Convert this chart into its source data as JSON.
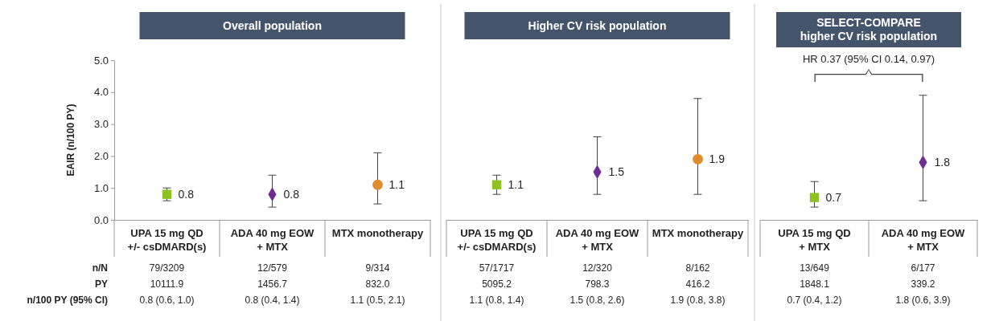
{
  "chart_data": [
    {
      "type": "scatter",
      "title": "Overall population",
      "ylabel": "EAIR (n/100 PY)",
      "categories": [
        "UPA 15 mg QD\n+/- csDMARD(s)",
        "ADA 40 mg EOW\n+ MTX",
        "MTX monotherapy"
      ],
      "ylim": [
        0,
        5
      ],
      "yticks": [
        {
          "value": 0,
          "label": "0.0"
        },
        {
          "value": 1,
          "label": "1.0"
        },
        {
          "value": 2,
          "label": "2.0"
        },
        {
          "value": 3,
          "label": "3.0"
        },
        {
          "value": 4,
          "label": "4.0"
        },
        {
          "value": 5,
          "label": "5.0"
        }
      ],
      "data_labels": true,
      "series": [
        {
          "color": "#8dc21f",
          "marker": "square",
          "values": [
            0.8,
            null,
            null
          ],
          "errors": [
            [
              0.6,
              1.0
            ],
            null,
            null
          ]
        },
        {
          "color": "#6f2c91",
          "marker": "diamond",
          "values": [
            null,
            0.8,
            null
          ],
          "errors": [
            null,
            [
              0.4,
              1.4
            ],
            null
          ]
        },
        {
          "color": "#e08b2c",
          "marker": "circle",
          "values": [
            null,
            null,
            1.1
          ],
          "errors": [
            null,
            null,
            [
              0.5,
              2.1
            ]
          ]
        }
      ],
      "annotations": [
        "n/N",
        "PY",
        "n/100 PY (95% CI)",
        "79/3209",
        "12/579",
        "9/314",
        "10111.9",
        "1456.7",
        "832.0",
        "0.8 (0.6, 1.0)",
        "0.8 (0.4, 1.4)",
        "1.1 (0.5, 2.1)"
      ]
    },
    {
      "type": "scatter",
      "title": "Higher CV risk population",
      "categories": [
        "UPA 15 mg QD\n+/- csDMARD(s)",
        "ADA 40 mg EOW\n+ MTX",
        "MTX monotherapy"
      ],
      "ylim": [
        0,
        5
      ],
      "tick_labels": "x",
      "data_labels": true,
      "series": [
        {
          "color": "#8dc21f",
          "marker": "square",
          "values": [
            1.1,
            null,
            null
          ],
          "errors": [
            [
              0.8,
              1.4
            ],
            null,
            null
          ]
        },
        {
          "color": "#6f2c91",
          "marker": "diamond",
          "values": [
            null,
            1.5,
            null
          ],
          "errors": [
            null,
            [
              0.8,
              2.6
            ],
            null
          ]
        },
        {
          "color": "#e08b2c",
          "marker": "circle",
          "values": [
            null,
            null,
            1.9
          ],
          "errors": [
            null,
            null,
            [
              0.8,
              3.8
            ]
          ]
        }
      ],
      "annotations": [
        "57/1717",
        "12/320",
        "8/162",
        "5095.2",
        "798.3",
        "416.2",
        "1.1 (0.8, 1.4)",
        "1.5 (0.8, 2.6)",
        "1.9 (0.8, 3.8)"
      ]
    },
    {
      "type": "scatter",
      "title": "SELECT-COMPARE\nhigher CV risk population",
      "categories": [
        "UPA 15 mg QD\n+ MTX",
        "ADA 40 mg EOW\n+ MTX"
      ],
      "ylim": [
        0,
        5
      ],
      "tick_labels": "x",
      "data_labels": true,
      "series": [
        {
          "color": "#8dc21f",
          "marker": "square",
          "values": [
            0.7,
            null
          ],
          "errors": [
            [
              0.4,
              1.2
            ],
            null
          ]
        },
        {
          "color": "#6f2c91",
          "marker": "diamond",
          "values": [
            null,
            1.8
          ],
          "errors": [
            null,
            [
              0.6,
              3.9
            ]
          ]
        }
      ],
      "annotations": [
        "HR 0.37 (95% CI 0.14, 0.97)",
        "13/649",
        "6/177",
        "1848.1",
        "339.2",
        "0.7 (0.4, 1.2)",
        "1.8 (0.6, 3.9)"
      ]
    }
  ]
}
